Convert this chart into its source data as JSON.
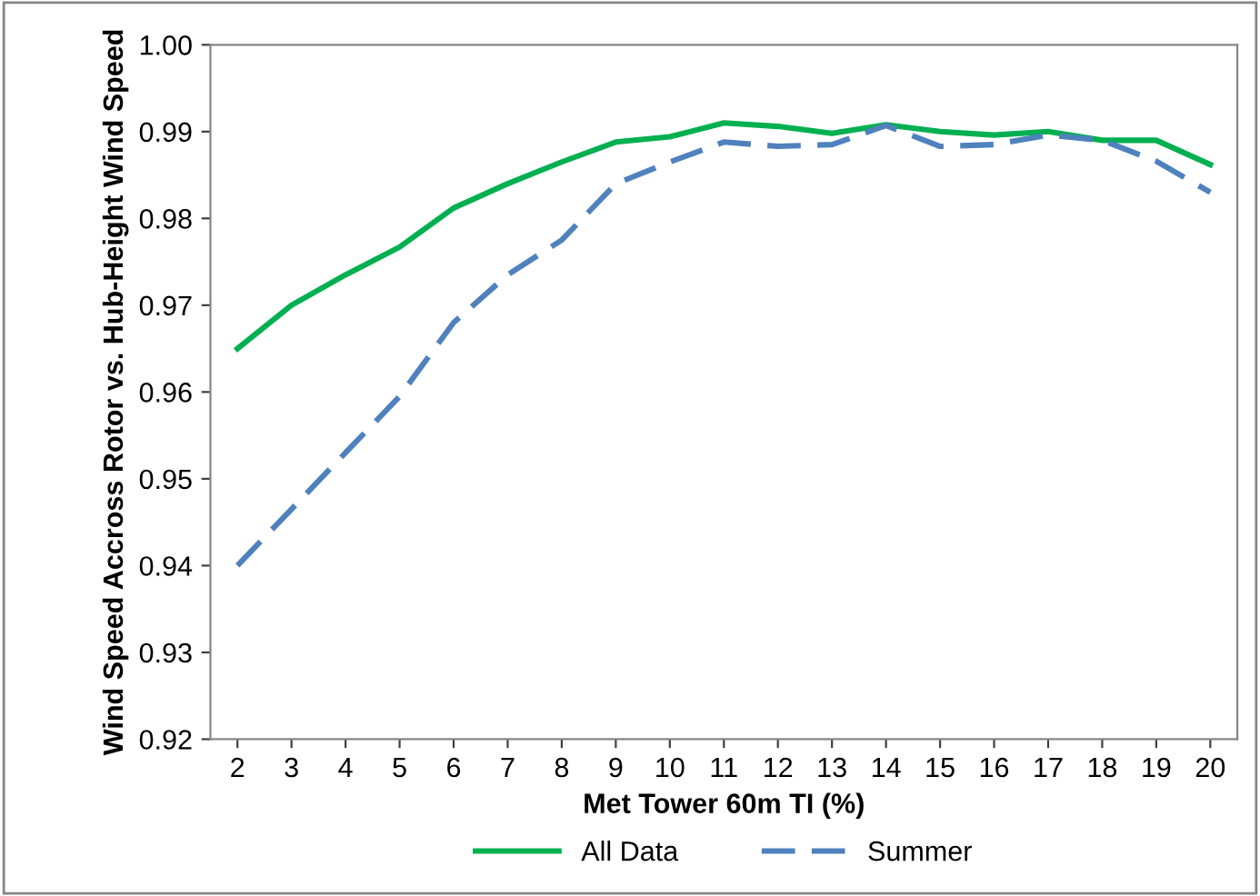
{
  "chart_data": {
    "type": "line",
    "xlabel": "Met Tower 60m TI (%)",
    "ylabel": "Wind Speed Accross Rotor vs. Hub-Height Wind Speed",
    "categories": [
      "2",
      "3",
      "4",
      "5",
      "6",
      "7",
      "8",
      "9",
      "10",
      "11",
      "12",
      "13",
      "14",
      "15",
      "16",
      "17",
      "18",
      "19",
      "20"
    ],
    "series": [
      {
        "name": "All Data",
        "color": "#00b050",
        "line_style": "solid",
        "values": [
          0.965,
          0.97,
          0.9735,
          0.9767,
          0.9812,
          0.984,
          0.9865,
          0.9888,
          0.9894,
          0.991,
          0.9906,
          0.9898,
          0.9908,
          0.99,
          0.9896,
          0.99,
          0.989,
          0.989,
          0.9862
        ]
      },
      {
        "name": "Summer",
        "color": "#4f81bd",
        "line_style": "dashed",
        "values": [
          0.94,
          0.9465,
          0.953,
          0.9595,
          0.968,
          0.9735,
          0.9775,
          0.984,
          0.9865,
          0.9888,
          0.9883,
          0.9885,
          0.9907,
          0.9883,
          0.9885,
          0.9896,
          0.989,
          0.9866,
          0.983
        ]
      }
    ],
    "ylim": [
      0.92,
      1.0
    ],
    "yticks": [
      0.92,
      0.93,
      0.94,
      0.95,
      0.96,
      0.97,
      0.98,
      0.99,
      {
        "value": 1.0,
        "label": "1.00"
      }
    ],
    "grid": false,
    "legend": "bottom",
    "marker": "none"
  }
}
